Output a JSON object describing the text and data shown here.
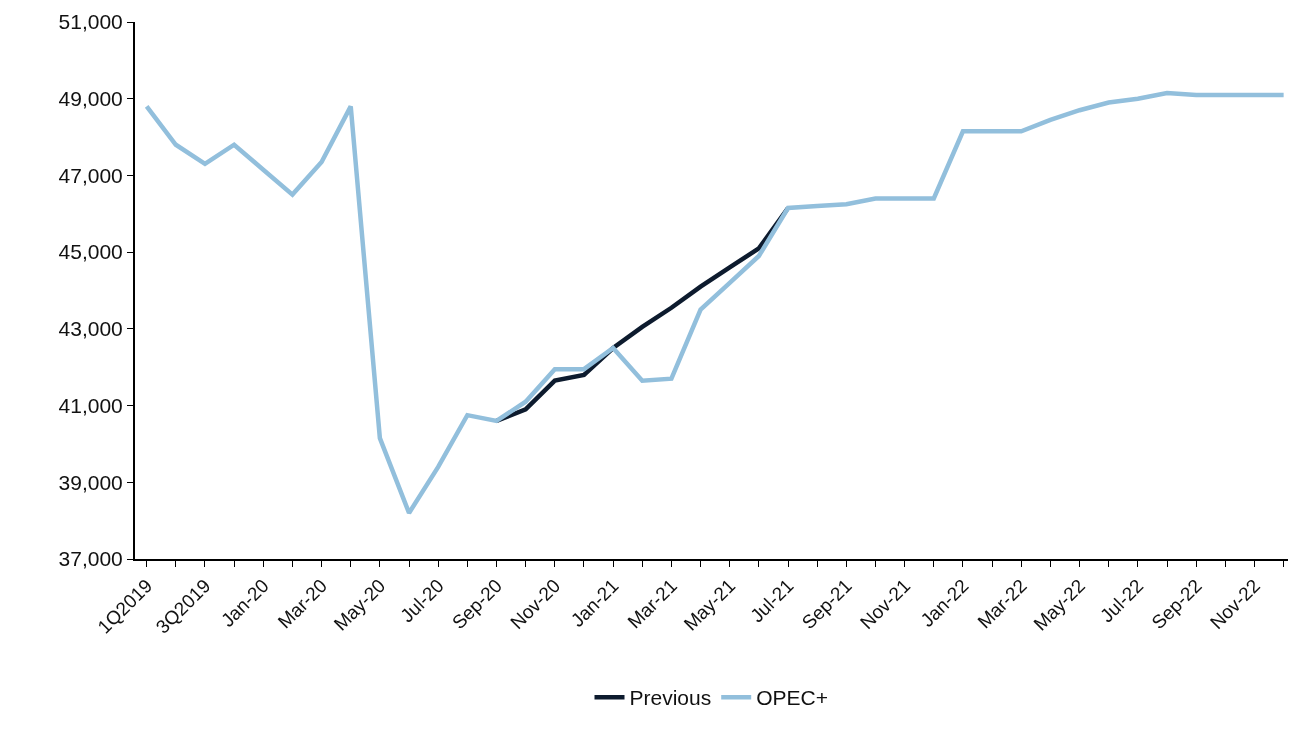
{
  "chart_data": {
    "type": "line",
    "categories": [
      "1Q2019",
      null,
      "3Q2019",
      null,
      "Jan-20",
      null,
      "Mar-20",
      null,
      "May-20",
      null,
      "Jul-20",
      null,
      "Sep-20",
      null,
      "Nov-20",
      null,
      "Jan-21",
      null,
      "Mar-21",
      null,
      "May-21",
      null,
      "Jul-21",
      null,
      "Sep-21",
      null,
      "Nov-21",
      null,
      "Jan-22",
      null,
      "Mar-22",
      null,
      "May-22",
      null,
      "Jul-22",
      null,
      "Sep-22",
      null,
      "Nov-22",
      null
    ],
    "series": [
      {
        "name": "Previous",
        "color": "#0d1b2e",
        "values": [
          null,
          null,
          null,
          null,
          null,
          null,
          null,
          null,
          null,
          null,
          null,
          null,
          40600,
          40900,
          41650,
          41800,
          42500,
          43050,
          43550,
          44100,
          44600,
          45100,
          46150,
          null,
          null,
          null,
          null,
          null,
          null,
          null,
          null,
          null,
          null,
          null,
          null,
          null,
          null,
          null,
          null,
          null
        ]
      },
      {
        "name": "OPEC+",
        "color": "#92bfdc",
        "values": [
          48800,
          47800,
          47300,
          47800,
          47150,
          46500,
          47350,
          48800,
          40150,
          38200,
          39400,
          40750,
          40600,
          41100,
          41950,
          41950,
          42500,
          41650,
          41700,
          43500,
          44200,
          44900,
          46150,
          46200,
          46250,
          46400,
          46400,
          46400,
          48150,
          48150,
          48150,
          48450,
          48700,
          48900,
          49000,
          49150,
          49100,
          49100,
          49100,
          49100
        ]
      }
    ],
    "ylim": [
      37000,
      51000
    ],
    "yticks": [
      {
        "value": 37000,
        "label": "37,000"
      },
      {
        "value": 39000,
        "label": "39,000"
      },
      {
        "value": 41000,
        "label": "41,000"
      },
      {
        "value": 43000,
        "label": "43,000"
      },
      {
        "value": 45000,
        "label": "45,000"
      },
      {
        "value": 47000,
        "label": "47,000"
      },
      {
        "value": 49000,
        "label": "49,000"
      },
      {
        "value": 51000,
        "label": "51,000"
      }
    ],
    "legend": "bottom",
    "marker": "none",
    "line_style": "solid"
  }
}
